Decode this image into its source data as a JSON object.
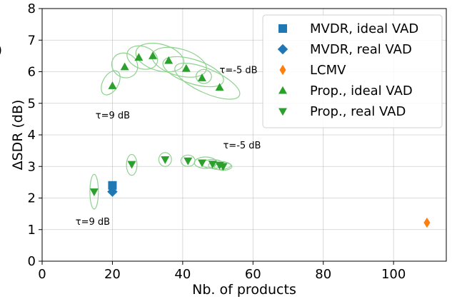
{
  "chart_data": {
    "type": "scatter",
    "xlabel": "Nb. of products",
    "ylabel": "ΔSDR (dB)",
    "xlim": [
      0,
      115
    ],
    "ylim": [
      0,
      8
    ],
    "xticks": [
      0,
      20,
      40,
      60,
      80,
      100
    ],
    "yticks": [
      0,
      1,
      2,
      3,
      4,
      5,
      6,
      7,
      8
    ],
    "grid": true,
    "legend_position": "top-right",
    "colors": {
      "blue": "#1f77b4",
      "orange": "#ff7f0e",
      "green": "#2ca02c",
      "ellipse": "#8fd18f"
    },
    "series": [
      {
        "name": "MVDR, ideal VAD",
        "marker": "square",
        "color": "#1f77b4",
        "points": [
          {
            "x": 20,
            "y": 2.4
          }
        ]
      },
      {
        "name": "MVDR, real VAD",
        "marker": "diamond",
        "color": "#1f77b4",
        "points": [
          {
            "x": 20,
            "y": 2.2
          }
        ]
      },
      {
        "name": "LCMV",
        "marker": "thin_diamond",
        "color": "#ff7f0e",
        "points": [
          {
            "x": 109.5,
            "y": 1.22
          }
        ]
      },
      {
        "name": "Prop., ideal VAD",
        "marker": "triangle-up",
        "color": "#2ca02c",
        "points": [
          {
            "x": 20,
            "y": 5.55
          },
          {
            "x": 23.5,
            "y": 6.15
          },
          {
            "x": 27.5,
            "y": 6.45
          },
          {
            "x": 31.5,
            "y": 6.5
          },
          {
            "x": 36,
            "y": 6.35
          },
          {
            "x": 41,
            "y": 6.1
          },
          {
            "x": 45.5,
            "y": 5.8
          },
          {
            "x": 50.5,
            "y": 5.5
          }
        ]
      },
      {
        "name": "Prop., real VAD",
        "marker": "triangle-down",
        "color": "#2ca02c",
        "points": [
          {
            "x": 14.8,
            "y": 2.2
          },
          {
            "x": 25.5,
            "y": 3.07
          },
          {
            "x": 35,
            "y": 3.22
          },
          {
            "x": 41.5,
            "y": 3.18
          },
          {
            "x": 45.5,
            "y": 3.12
          },
          {
            "x": 48.5,
            "y": 3.08
          },
          {
            "x": 50.5,
            "y": 3.04
          },
          {
            "x": 51.5,
            "y": 3.0
          }
        ]
      }
    ],
    "ellipses": {
      "ideal": [
        {
          "cx": 19.5,
          "cy": 5.65,
          "rx": 2.2,
          "ry": 0.42,
          "angle": 30
        },
        {
          "cx": 23.5,
          "cy": 6.2,
          "rx": 3.8,
          "ry": 0.38,
          "angle": 33
        },
        {
          "cx": 28.5,
          "cy": 6.45,
          "rx": 4.5,
          "ry": 0.35,
          "angle": 20
        },
        {
          "cx": 33.5,
          "cy": 6.45,
          "rx": 7.0,
          "ry": 0.42,
          "angle": 15
        },
        {
          "cx": 39,
          "cy": 6.3,
          "rx": 8.0,
          "ry": 0.42,
          "angle": 16
        },
        {
          "cx": 43,
          "cy": 6.0,
          "rx": 9.0,
          "ry": 0.38,
          "angle": 18
        },
        {
          "cx": 46,
          "cy": 5.85,
          "rx": 2.2,
          "ry": 0.22,
          "angle": 0
        },
        {
          "cx": 47,
          "cy": 5.7,
          "rx": 10.0,
          "ry": 0.38,
          "angle": 24
        }
      ],
      "real": [
        {
          "cx": 14.8,
          "cy": 2.2,
          "rx": 1.2,
          "ry": 0.55,
          "angle": 0
        },
        {
          "cx": 25.5,
          "cy": 3.05,
          "rx": 1.5,
          "ry": 0.33,
          "angle": 0
        },
        {
          "cx": 35,
          "cy": 3.22,
          "rx": 1.8,
          "ry": 0.22,
          "angle": 0
        },
        {
          "cx": 41.5,
          "cy": 3.18,
          "rx": 2.0,
          "ry": 0.18,
          "angle": 0
        },
        {
          "cx": 46.5,
          "cy": 3.12,
          "rx": 3.2,
          "ry": 0.18,
          "angle": 0
        },
        {
          "cx": 48.5,
          "cy": 3.08,
          "rx": 3.0,
          "ry": 0.14,
          "angle": 0
        },
        {
          "cx": 50.5,
          "cy": 3.03,
          "rx": 3.2,
          "ry": 0.13,
          "angle": 0
        },
        {
          "cx": 51.5,
          "cy": 3.0,
          "rx": 2.5,
          "ry": 0.12,
          "angle": 0
        }
      ]
    },
    "annotations": [
      {
        "text": "τ=-5 dB",
        "x": 50.5,
        "y": 5.95
      },
      {
        "text": "τ=9 dB",
        "x": 15.2,
        "y": 4.52
      },
      {
        "text": "τ=-5 dB",
        "x": 51.5,
        "y": 3.57
      },
      {
        "text": "τ=9 dB",
        "x": 9.5,
        "y": 1.15
      }
    ],
    "edge_mark": ")"
  }
}
